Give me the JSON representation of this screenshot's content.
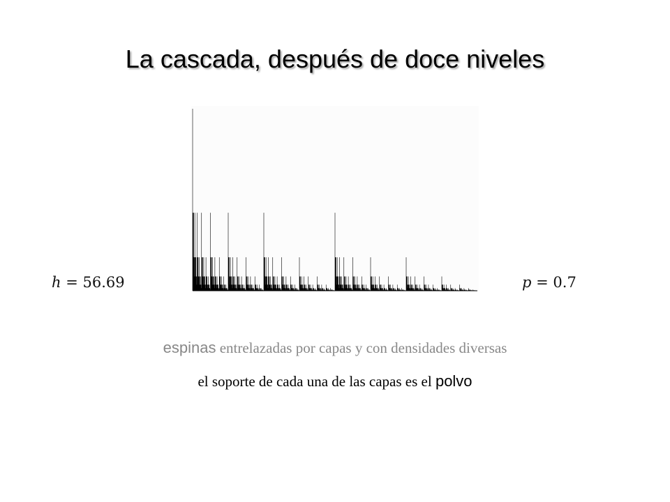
{
  "title": "La cascada, después de doce niveles",
  "params": {
    "h_var": "h",
    "h_value": "= 56.69",
    "p_var": "p",
    "p_value": "= 0.7"
  },
  "cascade": {
    "levels": 12,
    "p": 0.7,
    "h": 56.69
  },
  "caption": {
    "line1_lead": "espinas",
    "line1_rest": " entrelazadas por capas y con densidades diversas",
    "line2_lead": "el soporte de cada una de las capas es el ",
    "line2_tail": "polvo"
  },
  "colors": {
    "spike": "#000000",
    "panel_bg": "#fcfcfc",
    "line1_text": "#888888",
    "line2_text": "#000000"
  }
}
